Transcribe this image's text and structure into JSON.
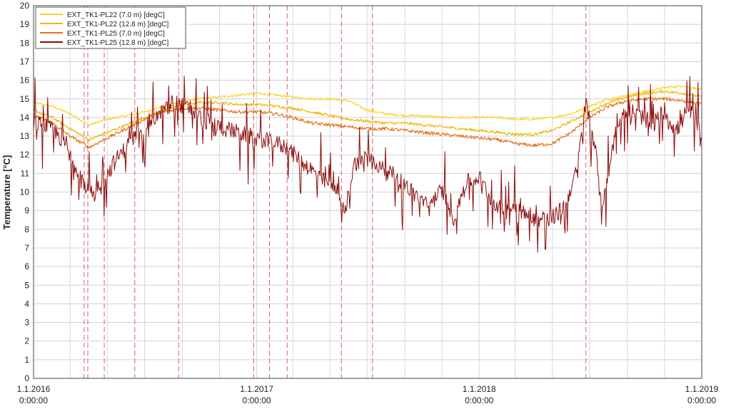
{
  "chart_data": {
    "type": "line",
    "title": "",
    "xlabel": "",
    "ylabel": "Temperature [°C]",
    "ylim": [
      0,
      20
    ],
    "yticks": [
      0,
      1,
      2,
      3,
      4,
      5,
      6,
      7,
      8,
      9,
      10,
      11,
      12,
      13,
      14,
      15,
      16,
      17,
      18,
      19,
      20
    ],
    "xlim": [
      "2016-01-01",
      "2019-01-01"
    ],
    "grid": true,
    "legend_position": "top-left",
    "x_ticks": [
      {
        "date": "2016-01-01",
        "line1": "1.1.2016",
        "line2": "0:00:00"
      },
      {
        "date": "2017-01-01",
        "line1": "1.1.2017",
        "line2": "0:00:00"
      },
      {
        "date": "2018-01-01",
        "line1": "1.1.2018",
        "line2": "0:00:00"
      },
      {
        "date": "2019-01-01",
        "line1": "1.1.2019",
        "line2": "0:00:00"
      }
    ],
    "event_markers": [
      "2016-03-24",
      "2016-03-30",
      "2016-04-26",
      "2016-06-15",
      "2016-08-26",
      "2016-12-27",
      "2017-01-22",
      "2017-02-20",
      "2017-05-20",
      "2017-07-10",
      "2018-06-25"
    ],
    "series": [
      {
        "name": "EXT_TK1-PL22 (7.0 m) [degC]",
        "color": "#ffd21f",
        "points": [
          [
            "2016-01-01",
            14.8
          ],
          [
            "2016-02-01",
            14.6
          ],
          [
            "2016-03-01",
            14.2
          ],
          [
            "2016-04-01",
            13.6
          ],
          [
            "2016-05-01",
            13.9
          ],
          [
            "2016-06-01",
            14.1
          ],
          [
            "2016-07-01",
            14.3
          ],
          [
            "2016-08-01",
            14.6
          ],
          [
            "2016-09-01",
            14.9
          ],
          [
            "2016-10-01",
            15.0
          ],
          [
            "2016-11-01",
            15.1
          ],
          [
            "2016-12-01",
            15.2
          ],
          [
            "2017-01-01",
            15.3
          ],
          [
            "2017-02-01",
            15.2
          ],
          [
            "2017-03-01",
            15.1
          ],
          [
            "2017-04-01",
            15.0
          ],
          [
            "2017-05-01",
            15.0
          ],
          [
            "2017-06-01",
            14.9
          ],
          [
            "2017-07-01",
            14.4
          ],
          [
            "2017-08-01",
            14.2
          ],
          [
            "2017-09-01",
            14.1
          ],
          [
            "2017-10-01",
            14.1
          ],
          [
            "2017-11-01",
            14.0
          ],
          [
            "2017-12-01",
            14.0
          ],
          [
            "2018-01-01",
            14.0
          ],
          [
            "2018-02-01",
            14.0
          ],
          [
            "2018-03-01",
            13.9
          ],
          [
            "2018-04-01",
            13.9
          ],
          [
            "2018-05-01",
            14.0
          ],
          [
            "2018-06-01",
            14.2
          ],
          [
            "2018-07-01",
            14.6
          ],
          [
            "2018-08-01",
            15.0
          ],
          [
            "2018-09-01",
            15.2
          ],
          [
            "2018-10-01",
            15.4
          ],
          [
            "2018-11-01",
            15.6
          ],
          [
            "2018-12-01",
            15.7
          ],
          [
            "2019-01-01",
            15.5
          ]
        ]
      },
      {
        "name": "EXT_TK1-PL22 (12.8 m) [degC]",
        "color": "#f0b400",
        "points": [
          [
            "2016-01-01",
            14.4
          ],
          [
            "2016-02-01",
            14.0
          ],
          [
            "2016-03-01",
            13.4
          ],
          [
            "2016-04-01",
            12.8
          ],
          [
            "2016-05-01",
            13.2
          ],
          [
            "2016-06-01",
            13.6
          ],
          [
            "2016-07-01",
            14.0
          ],
          [
            "2016-08-01",
            14.4
          ],
          [
            "2016-09-01",
            14.7
          ],
          [
            "2016-10-01",
            14.8
          ],
          [
            "2016-11-01",
            14.8
          ],
          [
            "2016-12-01",
            14.7
          ],
          [
            "2017-01-01",
            14.7
          ],
          [
            "2017-02-01",
            14.6
          ],
          [
            "2017-03-01",
            14.5
          ],
          [
            "2017-04-01",
            14.3
          ],
          [
            "2017-05-01",
            14.1
          ],
          [
            "2017-06-01",
            13.9
          ],
          [
            "2017-07-01",
            13.8
          ],
          [
            "2017-08-01",
            13.7
          ],
          [
            "2017-09-01",
            13.7
          ],
          [
            "2017-10-01",
            13.6
          ],
          [
            "2017-11-01",
            13.5
          ],
          [
            "2017-12-01",
            13.4
          ],
          [
            "2018-01-01",
            13.3
          ],
          [
            "2018-02-01",
            13.2
          ],
          [
            "2018-03-01",
            13.1
          ],
          [
            "2018-04-01",
            13.1
          ],
          [
            "2018-05-01",
            13.3
          ],
          [
            "2018-06-01",
            13.8
          ],
          [
            "2018-07-01",
            14.3
          ],
          [
            "2018-08-01",
            14.8
          ],
          [
            "2018-09-01",
            15.1
          ],
          [
            "2018-10-01",
            15.3
          ],
          [
            "2018-11-01",
            15.4
          ],
          [
            "2018-12-01",
            15.3
          ],
          [
            "2019-01-01",
            15.1
          ]
        ]
      },
      {
        "name": "EXT_TK1-PL25 (7.0 m) [degC]",
        "color": "#e8701a",
        "points": [
          [
            "2016-01-01",
            14.1
          ],
          [
            "2016-02-01",
            13.7
          ],
          [
            "2016-03-01",
            13.0
          ],
          [
            "2016-04-01",
            12.4
          ],
          [
            "2016-05-01",
            12.9
          ],
          [
            "2016-06-01",
            13.4
          ],
          [
            "2016-07-01",
            13.9
          ],
          [
            "2016-08-01",
            14.3
          ],
          [
            "2016-09-01",
            14.5
          ],
          [
            "2016-10-01",
            14.5
          ],
          [
            "2016-11-01",
            14.4
          ],
          [
            "2016-12-01",
            14.3
          ],
          [
            "2017-01-01",
            14.3
          ],
          [
            "2017-02-01",
            14.2
          ],
          [
            "2017-03-01",
            14.0
          ],
          [
            "2017-04-01",
            13.7
          ],
          [
            "2017-05-01",
            13.6
          ],
          [
            "2017-06-01",
            13.5
          ],
          [
            "2017-07-01",
            13.4
          ],
          [
            "2017-08-01",
            13.4
          ],
          [
            "2017-09-01",
            13.3
          ],
          [
            "2017-10-01",
            13.2
          ],
          [
            "2017-11-01",
            13.1
          ],
          [
            "2017-12-01",
            13.0
          ],
          [
            "2018-01-01",
            12.9
          ],
          [
            "2018-02-01",
            12.8
          ],
          [
            "2018-03-01",
            12.6
          ],
          [
            "2018-04-01",
            12.5
          ],
          [
            "2018-05-01",
            12.6
          ],
          [
            "2018-06-01",
            13.2
          ],
          [
            "2018-07-01",
            14.0
          ],
          [
            "2018-08-01",
            14.6
          ],
          [
            "2018-09-01",
            14.9
          ],
          [
            "2018-10-01",
            15.0
          ],
          [
            "2018-11-01",
            15.0
          ],
          [
            "2018-12-01",
            14.9
          ],
          [
            "2019-01-01",
            14.7
          ]
        ]
      },
      {
        "name": "EXT_TK1-PL25 (12.8 m) [degC]",
        "color": "#8b0c0c",
        "points": [
          [
            "2016-01-01",
            13.7
          ],
          [
            "2016-01-20",
            13.6
          ],
          [
            "2016-02-10",
            13.1
          ],
          [
            "2016-03-01",
            12.0
          ],
          [
            "2016-03-20",
            10.8
          ],
          [
            "2016-04-10",
            9.6
          ],
          [
            "2016-04-20",
            10.2
          ],
          [
            "2016-05-10",
            11.5
          ],
          [
            "2016-06-01",
            12.4
          ],
          [
            "2016-06-20",
            13.2
          ],
          [
            "2016-07-10",
            13.8
          ],
          [
            "2016-08-01",
            14.3
          ],
          [
            "2016-08-20",
            14.8
          ],
          [
            "2016-09-10",
            14.5
          ],
          [
            "2016-10-01",
            14.0
          ],
          [
            "2016-10-20",
            13.6
          ],
          [
            "2016-11-10",
            13.4
          ],
          [
            "2016-12-01",
            13.2
          ],
          [
            "2016-12-20",
            13.0
          ],
          [
            "2017-01-10",
            12.8
          ],
          [
            "2017-02-01",
            12.6
          ],
          [
            "2017-02-20",
            12.4
          ],
          [
            "2017-03-10",
            11.8
          ],
          [
            "2017-04-01",
            11.2
          ],
          [
            "2017-04-20",
            10.6
          ],
          [
            "2017-05-10",
            10.4
          ],
          [
            "2017-05-25",
            8.8
          ],
          [
            "2017-06-10",
            11.5
          ],
          [
            "2017-07-01",
            12.0
          ],
          [
            "2017-07-20",
            11.4
          ],
          [
            "2017-08-10",
            11.0
          ],
          [
            "2017-09-01",
            10.4
          ],
          [
            "2017-09-20",
            9.8
          ],
          [
            "2017-10-10",
            9.2
          ],
          [
            "2017-11-01",
            10.2
          ],
          [
            "2017-11-20",
            8.6
          ],
          [
            "2017-12-10",
            10.5
          ],
          [
            "2018-01-01",
            10.8
          ],
          [
            "2018-01-20",
            9.7
          ],
          [
            "2018-02-10",
            8.9
          ],
          [
            "2018-03-01",
            9.3
          ],
          [
            "2018-03-20",
            8.7
          ],
          [
            "2018-04-10",
            8.5
          ],
          [
            "2018-05-01",
            8.6
          ],
          [
            "2018-05-20",
            9.2
          ],
          [
            "2018-06-10",
            11.1
          ],
          [
            "2018-06-25",
            14.8
          ],
          [
            "2018-07-10",
            12.5
          ],
          [
            "2018-07-20",
            9.2
          ],
          [
            "2018-08-01",
            11.0
          ],
          [
            "2018-08-15",
            13.8
          ],
          [
            "2018-09-01",
            14.5
          ],
          [
            "2018-09-20",
            14.2
          ],
          [
            "2018-10-10",
            13.5
          ],
          [
            "2018-11-01",
            14.4
          ],
          [
            "2018-11-20",
            13.2
          ],
          [
            "2018-12-10",
            14.5
          ],
          [
            "2019-01-01",
            13.2
          ]
        ]
      }
    ]
  }
}
